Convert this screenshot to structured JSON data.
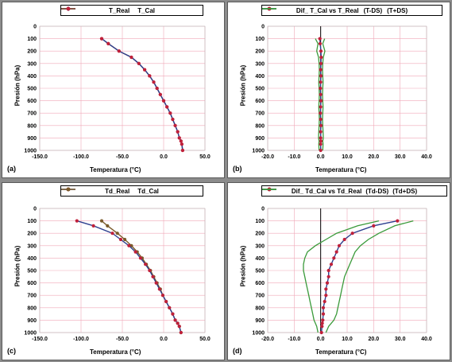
{
  "colors": {
    "real": "#2e3f8f",
    "cal": "#7a3a1a",
    "diff": "#2e3f8f",
    "band": "#3a9a3a",
    "marker": "#c0203a",
    "grid": "#f0a8b8"
  },
  "chart_data": [
    {
      "panel_label": "(a)",
      "type": "line",
      "xlabel": "Temperatura (°C)",
      "ylabel": "Presión (hPa)",
      "xlim": [
        -150,
        50
      ],
      "ylim": [
        0,
        1000
      ],
      "xticks": [
        -150,
        -100,
        -50,
        0,
        50
      ],
      "xtick_labels": [
        "-150.0",
        "-100.0",
        "-50.0",
        "0.0",
        "50.0"
      ],
      "yticks": [
        0,
        100,
        200,
        300,
        400,
        500,
        600,
        700,
        800,
        900,
        1000
      ],
      "zero_line": false,
      "legend_pos": "top",
      "series": [
        {
          "name": "T_Real",
          "role": "real",
          "x": [
            -75,
            -67,
            -54,
            -39,
            -30,
            -23,
            -17,
            -12,
            -8,
            -4,
            0,
            4,
            8,
            11,
            14,
            17,
            19,
            21,
            22,
            23
          ],
          "y": [
            100,
            140,
            200,
            250,
            300,
            350,
            400,
            450,
            500,
            550,
            600,
            650,
            700,
            750,
            800,
            850,
            900,
            925,
            950,
            1000
          ]
        },
        {
          "name": "T_Cal",
          "role": "cal",
          "x": [
            -75,
            -67,
            -54,
            -39,
            -30,
            -23,
            -17,
            -12,
            -8,
            -4,
            0,
            4,
            8,
            11,
            14,
            17,
            19,
            21,
            22,
            23
          ],
          "y": [
            100,
            140,
            200,
            250,
            300,
            350,
            400,
            450,
            500,
            550,
            600,
            650,
            700,
            750,
            800,
            850,
            900,
            925,
            950,
            1000
          ]
        }
      ]
    },
    {
      "panel_label": "(b)",
      "type": "line",
      "xlabel": "Temperatura (°C)",
      "ylabel": "Presión (hPa)",
      "xlim": [
        -20,
        40
      ],
      "ylim": [
        0,
        1000
      ],
      "xticks": [
        -20,
        -10,
        0,
        10,
        20,
        30,
        40
      ],
      "xtick_labels": [
        "-20.0",
        "-10.0",
        "0.0",
        "10.0",
        "20.0",
        "30.0",
        "40.0"
      ],
      "yticks": [
        0,
        100,
        200,
        300,
        400,
        500,
        600,
        700,
        800,
        900,
        1000
      ],
      "zero_line": true,
      "legend_pos": "top",
      "series": [
        {
          "name": "Dif_ T_Cal vs T_Real",
          "role": "diff",
          "x": [
            -0.3,
            -0.2,
            0.1,
            0.2,
            0.1,
            0.0,
            0.1,
            0.0,
            -0.1,
            0.0,
            0.1,
            0.0,
            -0.1,
            0.0,
            0.1,
            0.0,
            0.0,
            0.1,
            0.0,
            0.0
          ],
          "y": [
            100,
            140,
            200,
            250,
            300,
            350,
            400,
            450,
            500,
            550,
            600,
            650,
            700,
            750,
            800,
            850,
            900,
            925,
            950,
            1000
          ]
        },
        {
          "name": "(T-DS)",
          "role": "band",
          "x": [
            -2.0,
            -1.0,
            -1.5,
            -0.8,
            -0.6,
            -0.5,
            -0.6,
            -0.7,
            -0.6,
            -0.5,
            -0.6,
            -0.7,
            -0.6,
            -0.5,
            -0.6,
            -0.7,
            -0.8,
            -0.6,
            -0.7,
            -0.6
          ],
          "y": [
            100,
            140,
            200,
            250,
            300,
            350,
            400,
            450,
            500,
            550,
            600,
            650,
            700,
            750,
            800,
            850,
            900,
            925,
            950,
            1000
          ]
        },
        {
          "name": "(T+DS)",
          "role": "band2",
          "x": [
            1.5,
            0.8,
            1.6,
            1.0,
            0.8,
            0.7,
            0.8,
            0.9,
            0.8,
            0.7,
            0.8,
            0.9,
            0.8,
            0.7,
            0.8,
            0.9,
            1.0,
            0.8,
            0.9,
            0.8
          ],
          "y": [
            100,
            140,
            200,
            250,
            300,
            350,
            400,
            450,
            500,
            550,
            600,
            650,
            700,
            750,
            800,
            850,
            900,
            925,
            950,
            1000
          ]
        }
      ]
    },
    {
      "panel_label": "(c)",
      "type": "line",
      "xlabel": "Temperatura (°C)",
      "ylabel": "Presión (hPa)",
      "xlim": [
        -150,
        50
      ],
      "ylim": [
        0,
        1000
      ],
      "xticks": [
        -150,
        -100,
        -50,
        0,
        50
      ],
      "xtick_labels": [
        "-150.0",
        "-100.0",
        "-50.0",
        "0.0",
        "50.0"
      ],
      "yticks": [
        0,
        100,
        200,
        300,
        400,
        500,
        600,
        700,
        800,
        900,
        1000
      ],
      "zero_line": false,
      "legend_pos": "top",
      "series": [
        {
          "name": "Td_Real",
          "role": "real",
          "x": [
            -105,
            -85,
            -62,
            -52,
            -42,
            -34,
            -28,
            -22,
            -17,
            -13,
            -9,
            -5,
            -1,
            3,
            7,
            11,
            14,
            17,
            19,
            21
          ],
          "y": [
            100,
            140,
            200,
            250,
            300,
            350,
            400,
            450,
            500,
            550,
            600,
            650,
            700,
            750,
            800,
            850,
            900,
            925,
            950,
            1000
          ]
        },
        {
          "name": "Td_Cal",
          "role": "cal",
          "x": [
            -75,
            -68,
            -56,
            -47,
            -39,
            -32,
            -26,
            -21,
            -16,
            -12,
            -8,
            -4,
            -1,
            3,
            7,
            11,
            14,
            17,
            19,
            21
          ],
          "y": [
            100,
            140,
            200,
            250,
            300,
            350,
            400,
            450,
            500,
            550,
            600,
            650,
            700,
            750,
            800,
            850,
            900,
            925,
            950,
            1000
          ]
        }
      ]
    },
    {
      "panel_label": "(d)",
      "type": "line",
      "xlabel": "Temperatura (°C)",
      "ylabel": "Presión (hPa)",
      "xlim": [
        -20,
        40
      ],
      "ylim": [
        0,
        1000
      ],
      "xticks": [
        -20,
        -10,
        0,
        10,
        20,
        30,
        40
      ],
      "xtick_labels": [
        "-20.0",
        "-10.0",
        "0.0",
        "10.0",
        "20.0",
        "30.0",
        "40.0"
      ],
      "yticks": [
        0,
        100,
        200,
        300,
        400,
        500,
        600,
        700,
        800,
        900,
        1000
      ],
      "zero_line": true,
      "legend_pos": "top",
      "series": [
        {
          "name": "Dif_ Td_Cal vs Td_Real",
          "role": "diff",
          "x": [
            29,
            20,
            12,
            9,
            7,
            6,
            5,
            4,
            3,
            3,
            2.5,
            2,
            2,
            1.5,
            1,
            1,
            0.8,
            0.6,
            0.5,
            0.3
          ],
          "y": [
            100,
            140,
            200,
            250,
            300,
            350,
            400,
            450,
            500,
            550,
            600,
            650,
            700,
            750,
            800,
            850,
            900,
            925,
            950,
            1000
          ]
        },
        {
          "name": "(Td-DS)",
          "role": "band",
          "x": [
            22,
            14,
            6,
            2,
            -2,
            -5,
            -6,
            -6.5,
            -6.5,
            -6,
            -5.5,
            -5,
            -4.5,
            -4,
            -3.5,
            -3,
            -2.5,
            -2,
            -1.5,
            -1
          ],
          "y": [
            100,
            140,
            200,
            250,
            300,
            350,
            400,
            450,
            500,
            550,
            600,
            650,
            700,
            750,
            800,
            850,
            900,
            925,
            950,
            1000
          ]
        },
        {
          "name": "(Td+DS)",
          "role": "band2",
          "x": [
            35,
            28,
            22,
            18,
            15,
            13,
            12,
            11,
            10,
            9,
            8.5,
            8,
            7.5,
            7,
            6.5,
            6,
            5,
            4,
            3,
            2
          ],
          "y": [
            100,
            140,
            200,
            250,
            300,
            350,
            400,
            450,
            500,
            550,
            600,
            650,
            700,
            750,
            800,
            850,
            900,
            925,
            950,
            1000
          ]
        }
      ]
    }
  ]
}
